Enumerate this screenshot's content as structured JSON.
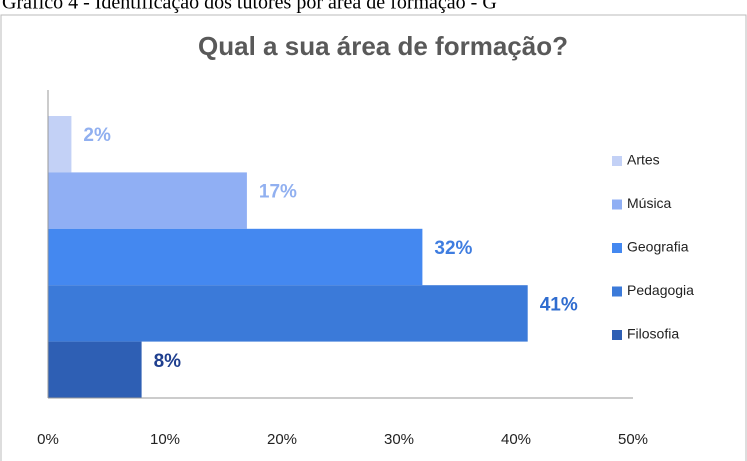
{
  "caption": "Gráfico 4 - Identificação dos tutores por área de formação - G",
  "chart_data": {
    "type": "hbar",
    "title": "Qual a sua área de formação?",
    "categories": [
      "Artes",
      "Música",
      "Geografia",
      "Pedagogia",
      "Filosofia"
    ],
    "values": [
      2,
      17,
      32,
      41,
      8
    ],
    "value_labels": [
      "2%",
      "17%",
      "32%",
      "41%",
      "8%"
    ],
    "colors": [
      "#c3d1f6",
      "#90aff4",
      "#4488f0",
      "#3b7ad9",
      "#2e5fb4"
    ],
    "label_colors": [
      "#91b0f0",
      "#91b0f0",
      "#3f7de0",
      "#2f6ccf",
      "#1f3f8f"
    ],
    "xlim": [
      0,
      50
    ],
    "xticks": [
      {
        "value": 0,
        "label": "0%"
      },
      {
        "value": 10,
        "label": "10%"
      },
      {
        "value": 20,
        "label": "20%"
      },
      {
        "value": 30,
        "label": "30%"
      },
      {
        "value": 40,
        "label": "40%"
      },
      {
        "value": 50,
        "label": "50%"
      }
    ],
    "legend": "right"
  }
}
